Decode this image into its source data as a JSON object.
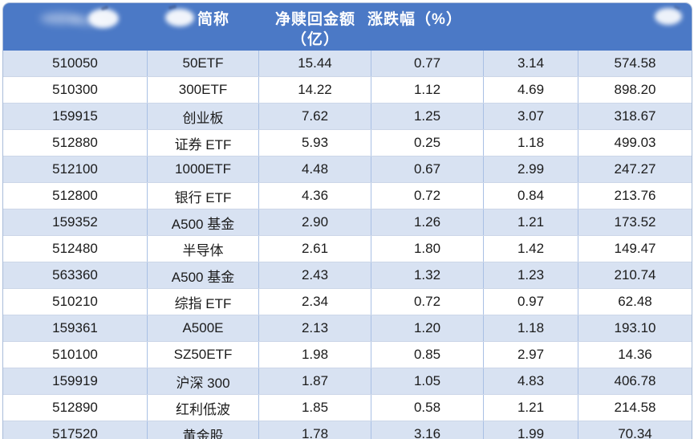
{
  "table": {
    "header": {
      "code_label": "",
      "name_label": "简称",
      "net_line1": "净赎回金额",
      "net_line2": "（亿）",
      "change_label": "涨跌幅（%）",
      "col5_label": "",
      "col6_label": ""
    }
  },
  "chart_data": {
    "type": "table",
    "title": "",
    "columns": [
      "",
      "简称",
      "净赎回金额（亿）",
      "涨跌幅（%）",
      "",
      ""
    ],
    "rows": [
      [
        "510050",
        "50ETF",
        "15.44",
        "0.77",
        "3.14",
        "574.58"
      ],
      [
        "510300",
        "300ETF",
        "14.22",
        "1.12",
        "4.69",
        "898.20"
      ],
      [
        "159915",
        "创业板",
        "7.62",
        "1.25",
        "3.07",
        "318.67"
      ],
      [
        "512880",
        "证券 ETF",
        "5.93",
        "0.25",
        "1.18",
        "499.03"
      ],
      [
        "512100",
        "1000ETF",
        "4.48",
        "0.67",
        "2.99",
        "247.27"
      ],
      [
        "512800",
        "银行 ETF",
        "4.36",
        "0.72",
        "0.84",
        "213.76"
      ],
      [
        "159352",
        "A500 基金",
        "2.90",
        "1.26",
        "1.21",
        "173.52"
      ],
      [
        "512480",
        "半导体",
        "2.61",
        "1.80",
        "1.42",
        "149.47"
      ],
      [
        "563360",
        "A500 基金",
        "2.43",
        "1.32",
        "1.23",
        "210.74"
      ],
      [
        "510210",
        "综指 ETF",
        "2.34",
        "0.72",
        "0.97",
        "62.48"
      ],
      [
        "159361",
        "A500E",
        "2.13",
        "1.20",
        "1.18",
        "193.10"
      ],
      [
        "510100",
        "SZ50ETF",
        "1.98",
        "0.85",
        "2.97",
        "14.36"
      ],
      [
        "159919",
        "沪深 300",
        "1.87",
        "1.05",
        "4.83",
        "406.78"
      ],
      [
        "512890",
        "红利低波",
        "1.85",
        "0.58",
        "1.21",
        "214.58"
      ],
      [
        "517520",
        "黄金股",
        "1.78",
        "3.16",
        "1.99",
        "70.34"
      ]
    ]
  },
  "colors": {
    "header_bg": "#4b79c6",
    "header_text": "#ffffff",
    "row_shaded": "#d8e2f2",
    "row_plain": "#ffffff",
    "grid_vertical": "#a9c0e4",
    "grid_horizontal": "#ccd6e8",
    "body_text": "#1b1b1b"
  }
}
